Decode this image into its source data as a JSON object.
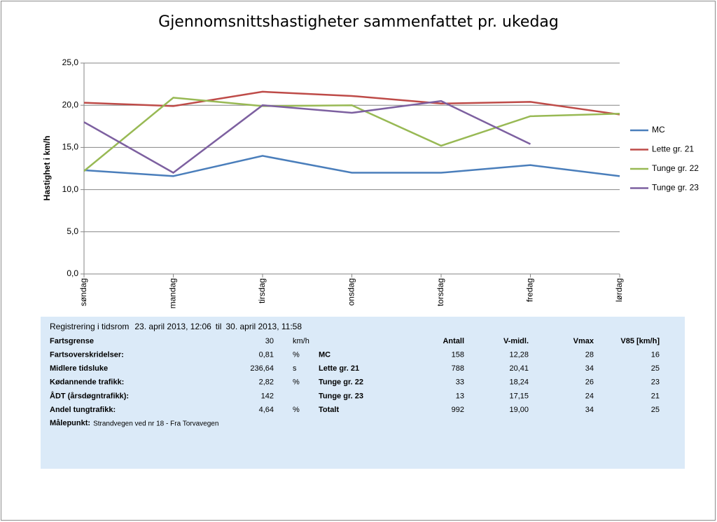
{
  "chart_data": {
    "type": "line",
    "title": "Gjennomsnittshastigheter sammenfattet pr. ukedag",
    "y_label": "Hastighet i km/h",
    "categories": [
      "søndag",
      "mandag",
      "tirsdag",
      "onsdag",
      "torsdag",
      "fredag",
      "lørdag"
    ],
    "series": [
      {
        "name": "MC",
        "color": "#4a7ebb",
        "values": [
          12.3,
          11.6,
          14.0,
          12.0,
          12.0,
          12.9,
          11.6
        ]
      },
      {
        "name": "Lette gr. 21",
        "color": "#be4b48",
        "values": [
          20.3,
          19.9,
          21.6,
          21.1,
          20.2,
          20.4,
          18.9
        ]
      },
      {
        "name": "Tunge gr. 22",
        "color": "#98b954",
        "values": [
          12.2,
          20.9,
          19.9,
          20.0,
          15.2,
          18.7,
          19.0
        ]
      },
      {
        "name": "Tunge gr. 23",
        "color": "#7d60a0",
        "values": [
          18.0,
          12.0,
          20.0,
          19.1,
          20.5,
          15.4,
          null
        ]
      }
    ],
    "ylim": [
      0,
      25
    ],
    "yticks": [
      {
        "value": 0,
        "label": "0,0"
      },
      {
        "value": 5,
        "label": "5,0"
      },
      {
        "value": 10,
        "label": "10,0"
      },
      {
        "value": 15,
        "label": "15,0"
      },
      {
        "value": 20,
        "label": "20,0"
      },
      {
        "value": 25,
        "label": "25,0"
      }
    ],
    "grid": true,
    "legend": "right"
  },
  "info": {
    "heading": "Registrering i tidsrom",
    "from": "23. april 2013, 12:06",
    "to_word": "til",
    "to": "30. april 2013, 11:58",
    "left_rows": [
      {
        "label": "Fartsgrense",
        "value": "30",
        "unit": "km/h"
      },
      {
        "label": "Fartsoverskridelser:",
        "value": "0,81",
        "unit": "%"
      },
      {
        "label": "Midlere tidsluke",
        "value": "236,64",
        "unit": "s"
      },
      {
        "label": "Kødannende trafikk:",
        "value": "2,82",
        "unit": "%"
      },
      {
        "label": "ÅDT (årsdøgntrafikk):",
        "value": "142"
      },
      {
        "label": "Andel tungtrafikk:",
        "value": "4,64",
        "unit": "%"
      }
    ],
    "right_header": [
      "Antall",
      "V-midl.",
      "Vmax",
      "V85 [km/h]"
    ],
    "right_rows": [
      [
        "MC",
        "158",
        "12,28",
        "28",
        "16"
      ],
      [
        "Lette gr. 21",
        "788",
        "20,41",
        "34",
        "25"
      ],
      [
        "Tunge gr. 22",
        "33",
        "18,24",
        "26",
        "23"
      ],
      [
        "Tunge gr. 23",
        "13",
        "17,15",
        "24",
        "21"
      ],
      [
        "Totalt",
        "992",
        "19,00",
        "34",
        "25"
      ]
    ],
    "measure_label": "Målepunkt:",
    "measure_point": "Strandvegen ved nr 18 - Fra Torvavegen"
  }
}
